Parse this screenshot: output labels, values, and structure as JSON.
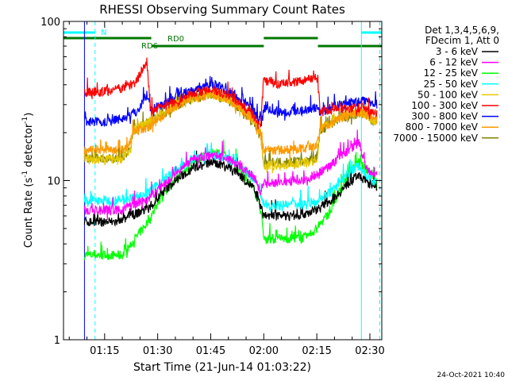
{
  "chart_data": {
    "type": "line",
    "title": "RHESSI Observing Summary Count Rates",
    "xlabel": "Start Time (21-Jun-14 01:03:22)",
    "ylabel_main": "Count Rate (s",
    "ylabel_sup1": "-1",
    "ylabel_mid": " detector",
    "ylabel_sup2": "-1",
    "ylabel_end": ")",
    "y_scale": "log",
    "ylim": [
      1,
      100
    ],
    "xlim_minutes": [
      3.37,
      93.37
    ],
    "y_ticks": [
      {
        "value": 1,
        "label": "1"
      },
      {
        "value": 10,
        "label": "10"
      },
      {
        "value": 100,
        "label": "100"
      }
    ],
    "x_ticks": [
      {
        "minute": 15,
        "label": "01:15"
      },
      {
        "minute": 30,
        "label": "01:30"
      },
      {
        "minute": 45,
        "label": "01:45"
      },
      {
        "minute": 60,
        "label": "02:00"
      },
      {
        "minute": 75,
        "label": "02:15"
      },
      {
        "minute": 90,
        "label": "02:30"
      }
    ],
    "legend_header": [
      "Det 1,3,4,5,6,9,",
      "FDecim 1, Att 0"
    ],
    "series": [
      {
        "name": "3 - 6 keV",
        "color": "#000000",
        "points": [
          [
            9.3,
            5.5
          ],
          [
            20,
            5.5
          ],
          [
            21,
            5.8
          ],
          [
            28,
            6.8
          ],
          [
            31,
            8.2
          ],
          [
            35,
            10
          ],
          [
            40,
            12
          ],
          [
            45,
            13
          ],
          [
            49,
            12.5
          ],
          [
            53,
            11
          ],
          [
            57,
            9
          ],
          [
            59,
            7
          ],
          [
            60,
            6
          ],
          [
            66,
            6
          ],
          [
            72,
            6.2
          ],
          [
            75,
            6.6
          ],
          [
            79,
            7.5
          ],
          [
            82,
            8.7
          ],
          [
            85,
            10
          ],
          [
            87,
            11
          ],
          [
            88.5,
            10
          ],
          [
            90,
            9.5
          ],
          [
            92,
            9.2
          ]
        ]
      },
      {
        "name": "6 - 12 keV",
        "color": "#ff00ff",
        "points": [
          [
            9.3,
            6.5
          ],
          [
            20,
            6.5
          ],
          [
            21,
            6.8
          ],
          [
            28,
            7.8
          ],
          [
            31,
            9.2
          ],
          [
            35,
            11
          ],
          [
            40,
            13.5
          ],
          [
            45,
            14.5
          ],
          [
            49,
            14
          ],
          [
            53,
            12.5
          ],
          [
            57,
            10.5
          ],
          [
            59,
            8.5
          ],
          [
            60,
            9.5
          ],
          [
            66,
            9.8
          ],
          [
            72,
            10.2
          ],
          [
            75,
            11
          ],
          [
            79,
            12.5
          ],
          [
            82,
            14.5
          ],
          [
            85,
            16
          ],
          [
            87,
            17.5
          ],
          [
            88.5,
            12.5
          ],
          [
            90,
            11.5
          ],
          [
            92,
            10.5
          ]
        ]
      },
      {
        "name": "12 - 25 keV",
        "color": "#00ff00",
        "points": [
          [
            9.3,
            3.4
          ],
          [
            20,
            3.4
          ],
          [
            21,
            3.6
          ],
          [
            28,
            5.8
          ],
          [
            31,
            8
          ],
          [
            35,
            10
          ],
          [
            40,
            13
          ],
          [
            45,
            15
          ],
          [
            49,
            14.5
          ],
          [
            53,
            12
          ],
          [
            57,
            9
          ],
          [
            59,
            7
          ],
          [
            60,
            4.3
          ],
          [
            66,
            4.3
          ],
          [
            72,
            4.4
          ],
          [
            75,
            5
          ],
          [
            79,
            6.5
          ],
          [
            82,
            9
          ],
          [
            85,
            12
          ],
          [
            87,
            13
          ],
          [
            88.5,
            12
          ],
          [
            90,
            11.5
          ],
          [
            92,
            9.8
          ]
        ]
      },
      {
        "name": "25 - 50 keV",
        "color": "#00ffff",
        "points": [
          [
            9.3,
            7.5
          ],
          [
            20,
            7.5
          ],
          [
            21,
            7.6
          ],
          [
            28,
            8.5
          ],
          [
            31,
            10
          ],
          [
            35,
            11.5
          ],
          [
            40,
            13.5
          ],
          [
            45,
            14.5
          ],
          [
            49,
            14
          ],
          [
            53,
            12.5
          ],
          [
            57,
            10.5
          ],
          [
            59,
            8.5
          ],
          [
            60,
            7
          ],
          [
            66,
            7
          ],
          [
            72,
            7.1
          ],
          [
            75,
            7.5
          ],
          [
            79,
            8.5
          ],
          [
            82,
            10
          ],
          [
            85,
            11.5
          ],
          [
            87,
            12.5
          ],
          [
            88.5,
            11
          ],
          [
            90,
            10.5
          ],
          [
            92,
            9.5
          ]
        ]
      },
      {
        "name": "50 - 100 keV",
        "color": "#e6c800",
        "points": [
          [
            9.3,
            13.5
          ],
          [
            20,
            13.5
          ],
          [
            21,
            14.8
          ],
          [
            22.5,
            15.5
          ],
          [
            23,
            21
          ],
          [
            28,
            24
          ],
          [
            33,
            28
          ],
          [
            38,
            32
          ],
          [
            45,
            35
          ],
          [
            49,
            33
          ],
          [
            53,
            29
          ],
          [
            57,
            24
          ],
          [
            59,
            20
          ],
          [
            60,
            12.5
          ],
          [
            66,
            12.5
          ],
          [
            72,
            13
          ],
          [
            75,
            13.5
          ],
          [
            76,
            21
          ],
          [
            80,
            24
          ],
          [
            85,
            26.5
          ],
          [
            88.5,
            26.5
          ],
          [
            90,
            24.5
          ],
          [
            92,
            23
          ]
        ]
      },
      {
        "name": "100 - 300 keV",
        "color": "#ff0000",
        "points": [
          [
            9.3,
            36
          ],
          [
            14,
            36
          ],
          [
            20,
            38
          ],
          [
            24,
            42
          ],
          [
            27,
            56
          ],
          [
            28,
            27
          ],
          [
            33,
            30
          ],
          [
            38,
            34
          ],
          [
            45,
            38
          ],
          [
            49,
            35
          ],
          [
            53,
            31
          ],
          [
            57,
            26
          ],
          [
            59,
            21
          ],
          [
            60,
            43
          ],
          [
            64,
            40
          ],
          [
            70,
            42
          ],
          [
            75,
            45
          ],
          [
            76,
            27
          ],
          [
            80,
            28
          ],
          [
            85,
            28.5
          ],
          [
            88.5,
            29
          ],
          [
            90,
            27
          ],
          [
            92,
            26
          ]
        ]
      },
      {
        "name": "300 - 800 keV",
        "color": "#0000ff",
        "points": [
          [
            9.3,
            23.5
          ],
          [
            15,
            23.5
          ],
          [
            20,
            24.5
          ],
          [
            24,
            27
          ],
          [
            27,
            35
          ],
          [
            28,
            28
          ],
          [
            33,
            31
          ],
          [
            38,
            36
          ],
          [
            45,
            41
          ],
          [
            49,
            38
          ],
          [
            53,
            33
          ],
          [
            57,
            28
          ],
          [
            59,
            23.5
          ],
          [
            60,
            28
          ],
          [
            66,
            27
          ],
          [
            72,
            28
          ],
          [
            75,
            29
          ],
          [
            76,
            27
          ],
          [
            80,
            29
          ],
          [
            85,
            31
          ],
          [
            88.5,
            31.5
          ],
          [
            90,
            31
          ],
          [
            92,
            30
          ]
        ]
      },
      {
        "name": "800 - 7000 keV",
        "color": "#ff9900",
        "points": [
          [
            9.3,
            15.5
          ],
          [
            20,
            15.5
          ],
          [
            21,
            16.5
          ],
          [
            22.5,
            17.5
          ],
          [
            23,
            20
          ],
          [
            28,
            22
          ],
          [
            33,
            27
          ],
          [
            38,
            32
          ],
          [
            45,
            35
          ],
          [
            49,
            33
          ],
          [
            53,
            29
          ],
          [
            57,
            24
          ],
          [
            59,
            20
          ],
          [
            60,
            15.5
          ],
          [
            66,
            15.5
          ],
          [
            72,
            16
          ],
          [
            75,
            16.5
          ],
          [
            76,
            21
          ],
          [
            80,
            24
          ],
          [
            85,
            26.5
          ],
          [
            88.5,
            26.5
          ],
          [
            90,
            25
          ],
          [
            92,
            24
          ]
        ]
      },
      {
        "name": "7000 - 15000 keV",
        "color": "#808000",
        "points": [
          [
            9.3,
            13.8
          ],
          [
            20,
            13.8
          ],
          [
            21,
            15
          ],
          [
            22.5,
            16
          ],
          [
            23,
            20.5
          ],
          [
            28,
            23.5
          ],
          [
            33,
            27.5
          ],
          [
            38,
            31.5
          ],
          [
            45,
            34.5
          ],
          [
            49,
            32.5
          ],
          [
            53,
            28.5
          ],
          [
            57,
            23.5
          ],
          [
            59,
            19.5
          ],
          [
            60,
            13
          ],
          [
            66,
            13
          ],
          [
            72,
            13.3
          ],
          [
            75,
            14
          ],
          [
            76,
            20.5
          ],
          [
            80,
            23.5
          ],
          [
            85,
            26
          ],
          [
            88.5,
            26
          ],
          [
            90,
            24.5
          ],
          [
            92,
            23
          ]
        ]
      }
    ],
    "status_bars": [
      {
        "label": "N",
        "color": "#00ffff",
        "segments": [
          [
            3.37,
            12.3
          ],
          [
            87.6,
            93.37
          ]
        ]
      },
      {
        "label": "RD0",
        "color": "#007700",
        "segments": [
          [
            3.37,
            28.2
          ],
          [
            60,
            75.3
          ]
        ]
      },
      {
        "label": "RD6",
        "color": "#007700",
        "segments": [
          [
            28.2,
            60
          ],
          [
            75.3,
            93.37
          ]
        ]
      }
    ],
    "vertical_lines": [
      {
        "minute": 9.3,
        "color": "#0000ff",
        "style": "solid"
      },
      {
        "minute": 12.3,
        "color": "#00ffff",
        "style": "dashed"
      },
      {
        "minute": 87.6,
        "color": "#00ffff",
        "style": "solid"
      },
      {
        "minute": 92.8,
        "color": "#00ffff",
        "style": "dashed"
      }
    ]
  },
  "footer": {
    "timestamp": "24-Oct-2021 10:40"
  }
}
